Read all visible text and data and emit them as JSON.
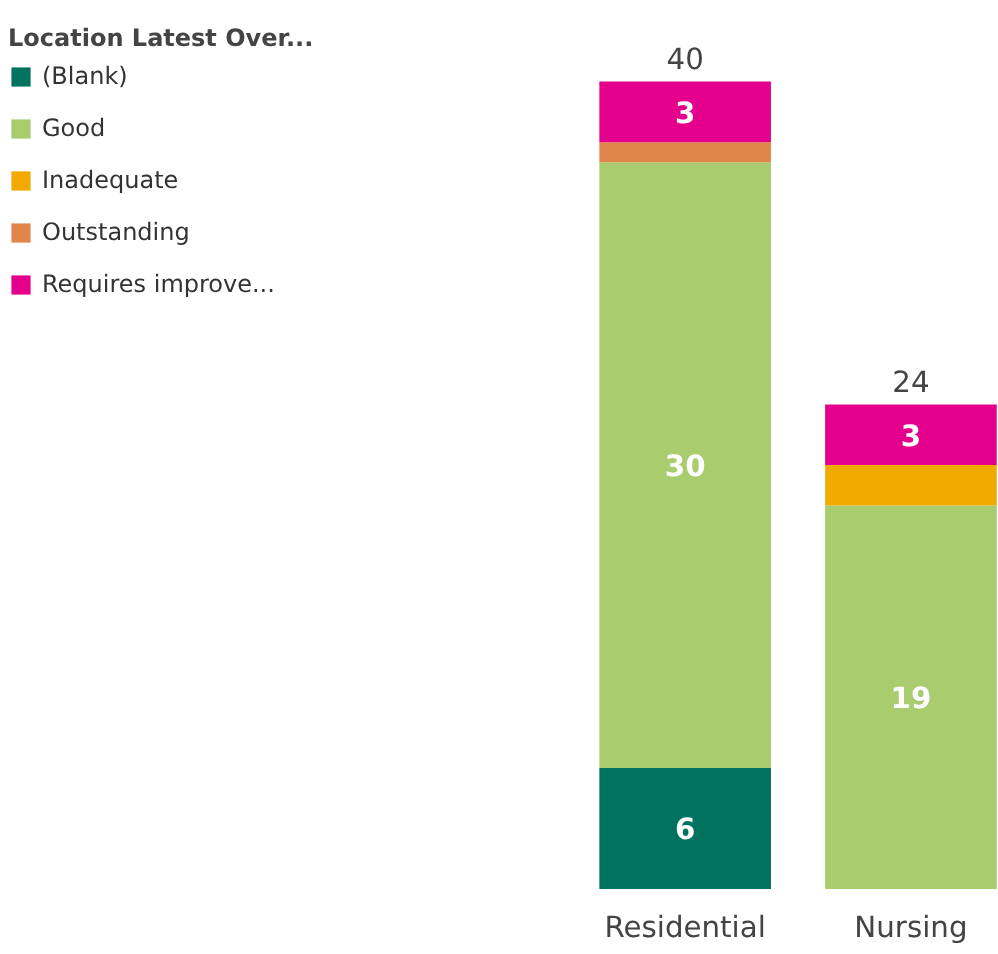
{
  "chart_data": {
    "type": "bar",
    "stacked": true,
    "legend_title": "Location Latest Over...",
    "legend": "left",
    "categories": [
      "Residential",
      "Nursing"
    ],
    "series": [
      {
        "name": "(Blank)",
        "color": "#00735f",
        "values": [
          6,
          0
        ],
        "value_labels": [
          "6",
          null
        ]
      },
      {
        "name": "Good",
        "color": "#a8cc6e",
        "values": [
          30,
          19
        ],
        "value_labels": [
          "30",
          "19"
        ]
      },
      {
        "name": "Inadequate",
        "color": "#f2a900",
        "values": [
          0,
          2
        ],
        "value_labels": [
          null,
          null
        ]
      },
      {
        "name": "Outstanding",
        "color": "#e0864a",
        "values": [
          1,
          0
        ],
        "value_labels": [
          null,
          null
        ]
      },
      {
        "name": "Requires improve...",
        "color": "#e4008c",
        "values": [
          3,
          3
        ],
        "value_labels": [
          "3",
          "3"
        ]
      }
    ],
    "totals": [
      "40",
      "24"
    ]
  }
}
